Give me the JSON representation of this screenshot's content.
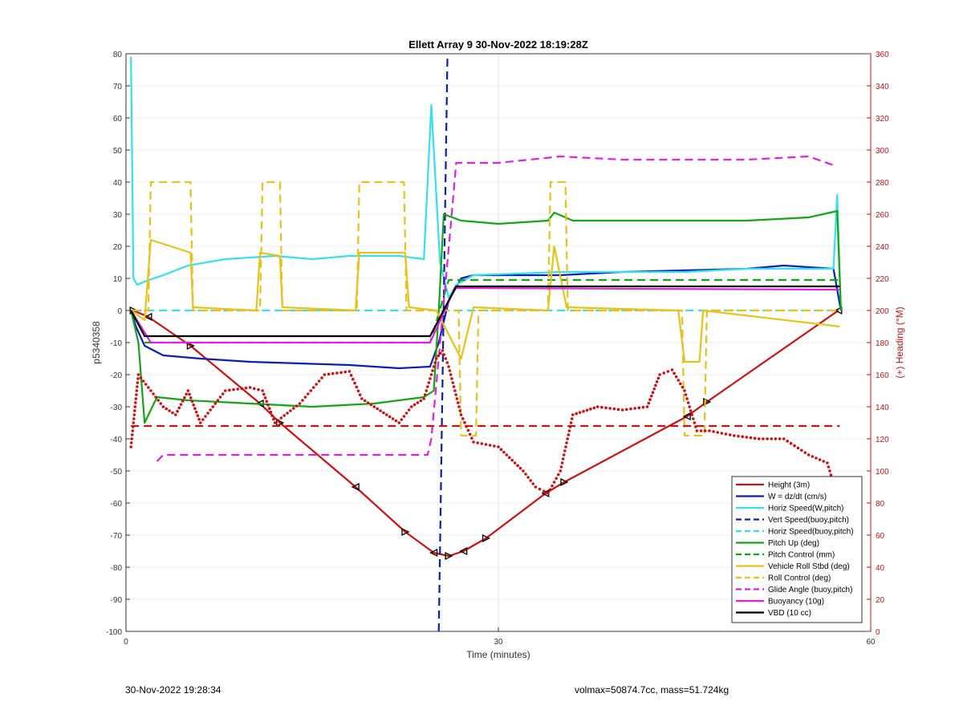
{
  "chart_data": {
    "type": "line",
    "title": "Ellett Array 9 30-Nov-2022 18:19:28Z",
    "xlabel": "Time (minutes)",
    "ylabel": "p5340358",
    "y2label": "(+) Heading (°M)",
    "xlim": [
      0,
      60
    ],
    "ylim": [
      -100,
      80
    ],
    "y2lim": [
      0,
      360
    ],
    "xticks": [
      "0",
      "30",
      "60"
    ],
    "yticks": [
      "80",
      "70",
      "60",
      "50",
      "40",
      "30",
      "20",
      "10",
      "0",
      "-10",
      "-20",
      "-30",
      "-40",
      "-50",
      "-60",
      "-70",
      "-80",
      "-90",
      "-100"
    ],
    "y2ticks": [
      "360",
      "340",
      "320",
      "300",
      "280",
      "260",
      "240",
      "220",
      "200",
      "180",
      "160",
      "140",
      "120",
      "100",
      "80",
      "60",
      "40",
      "20",
      "0"
    ],
    "grid": true,
    "legend_placement": "bottom-right",
    "series": [
      {
        "name": "Height (3m)",
        "color": "#cc1111",
        "style": "solid",
        "marker": "triangle",
        "x": [
          0.6,
          1.8,
          5.2,
          10.8,
          12.4,
          18.5,
          22.5,
          24.8,
          26.0,
          27.2,
          29.0,
          33.8,
          35.3,
          45.2,
          46.8,
          57.4
        ],
        "y": [
          0,
          -2,
          -11,
          -29,
          -35,
          -55,
          -69,
          -75.5,
          -76.5,
          -75,
          -71,
          -57,
          -53.5,
          -33,
          -28.5,
          0
        ]
      },
      {
        "name": "W = dz/dt (cm/s)",
        "color": "#0a1fb5",
        "style": "solid",
        "x": [
          0.4,
          0.8,
          1.5,
          3,
          6,
          10,
          14,
          18,
          22,
          24.5,
          25.2,
          26,
          27,
          28,
          35,
          40,
          45,
          50,
          53,
          55,
          57,
          57.6
        ],
        "y": [
          0,
          -5,
          -11,
          -14,
          -15,
          -16,
          -16.5,
          -17,
          -18,
          -17.5,
          -10,
          3,
          10,
          11,
          11,
          12,
          12.5,
          13,
          14,
          13.5,
          13,
          0
        ]
      },
      {
        "name": "Horiz Speed(W,pitch)",
        "color": "#33e0ee",
        "style": "solid",
        "x": [
          0.4,
          0.6,
          0.9,
          1.5,
          3,
          5,
          8,
          12,
          15,
          18,
          22,
          24,
          24.6,
          25.3,
          26,
          26.6,
          28,
          35,
          40,
          45,
          50,
          53,
          57,
          57.3,
          57.6
        ],
        "y": [
          79,
          10,
          8,
          9,
          11,
          14,
          16,
          17,
          16,
          17,
          17,
          16,
          64,
          15,
          4,
          8,
          11,
          12,
          12,
          12,
          13,
          13,
          13,
          36,
          0
        ]
      },
      {
        "name": "Vert Speed(buoy,pitch)",
        "color": "#0a1fb5",
        "style": "dashed",
        "x": [
          25.2,
          25.9
        ],
        "y": [
          -100,
          80
        ]
      },
      {
        "name": "Horiz Speed(buoy,pitch)",
        "color": "#33e0ee",
        "style": "dashed",
        "x": [
          0.6,
          57.5
        ],
        "y": [
          0,
          0
        ]
      },
      {
        "name": "Pitch Up (deg)",
        "color": "#13a513",
        "style": "solid",
        "x": [
          0.4,
          1.0,
          1.5,
          2.5,
          5,
          10,
          15,
          20,
          24,
          24.8,
          25.2,
          25.6,
          27,
          30,
          34,
          34.5,
          36,
          45,
          50,
          55,
          57.3,
          57.6
        ],
        "y": [
          0,
          -10,
          -35,
          -27,
          -28,
          -29,
          -30,
          -29,
          -27,
          -25,
          0,
          30,
          28,
          27,
          28,
          30.5,
          28,
          28,
          28,
          29,
          31,
          0
        ]
      },
      {
        "name": "Pitch Control (mm)",
        "color": "#13a513",
        "style": "dashed",
        "x": [
          1.5,
          24.5,
          26.0,
          57.5
        ],
        "y": [
          -10,
          -10,
          9.5,
          9.5
        ]
      },
      {
        "name": "Vehicle Roll Stbd (deg)",
        "color": "#e6c21a",
        "style": "solid",
        "x": [
          0.4,
          1.5,
          2.0,
          5.2,
          5.4,
          10.5,
          10.8,
          12.4,
          12.6,
          18.5,
          18.8,
          22.5,
          22.8,
          25.0,
          27.0,
          28.0,
          34.0,
          34.5,
          35.5,
          44.5,
          45.0,
          46.2,
          46.5,
          57.5
        ],
        "y": [
          0,
          -3,
          22,
          18,
          1,
          0,
          18,
          17,
          1,
          0,
          18,
          18,
          1,
          0,
          -15,
          1,
          0,
          20,
          1,
          0,
          -16,
          -16,
          0,
          -5
        ]
      },
      {
        "name": "Roll Control (deg)",
        "color": "#e6c21a",
        "style": "dashed",
        "x": [
          0.4,
          1.8,
          2.0,
          5.2,
          5.4,
          10.8,
          11.0,
          12.4,
          12.6,
          18.6,
          18.8,
          22.4,
          22.6,
          26.8,
          27.0,
          28.2,
          28.4,
          34.0,
          34.2,
          35.4,
          35.6,
          44.8,
          45.0,
          46.6,
          46.8,
          57.5
        ],
        "y": [
          0,
          0,
          40,
          40,
          0,
          0,
          40,
          40,
          0,
          0,
          40,
          40,
          0,
          0,
          -39,
          -39,
          0,
          0,
          40,
          40,
          0,
          0,
          -39,
          -39,
          0,
          0
        ]
      },
      {
        "name": "Glide Angle (buoy,pitch)",
        "color": "#dd22dd",
        "style": "dashed",
        "x": [
          2.5,
          3,
          10,
          20,
          24.3,
          24.6,
          26.2,
          26.6,
          30,
          35,
          40,
          50,
          55,
          57.2
        ],
        "y": [
          -47,
          -45,
          -45,
          -45,
          -45,
          -40,
          28,
          46,
          46,
          48,
          47,
          47,
          48,
          45
        ]
      },
      {
        "name": "Buoyancy (10g)",
        "color": "#e020e0",
        "style": "solid",
        "x": [
          0.4,
          2,
          24.5,
          26.5,
          57.5
        ],
        "y": [
          0,
          -10,
          -10,
          7,
          6.5
        ]
      },
      {
        "name": "VBD (10 cc)",
        "color": "#000000",
        "style": "solid",
        "x": [
          0.4,
          1.5,
          24.5,
          26.6,
          57.5
        ],
        "y": [
          0,
          -8,
          -8,
          7.5,
          7.5
        ]
      },
      {
        "name": "",
        "color": "#cc1111",
        "style": "dotted",
        "axis": "right",
        "x": [
          0.4,
          1,
          2,
          3,
          4,
          5,
          6,
          8,
          10,
          11,
          12,
          14,
          16,
          18,
          19,
          20,
          21,
          22,
          23,
          24,
          25,
          25.5,
          26,
          26.5,
          27,
          28,
          30,
          32,
          33,
          34,
          35,
          36,
          38,
          40,
          42,
          43,
          44,
          45,
          46,
          47,
          49,
          51,
          53,
          55,
          56.5,
          57.3
        ],
        "y": [
          115,
          160,
          150,
          140,
          135,
          150,
          130,
          150,
          152,
          150,
          130,
          142,
          160,
          162,
          145,
          140,
          135,
          130,
          140,
          145,
          170,
          175,
          165,
          150,
          135,
          118,
          115,
          100,
          90,
          86,
          100,
          135,
          140,
          138,
          140,
          160,
          163,
          150,
          125,
          125,
          122,
          120,
          120,
          110,
          105,
          85
        ]
      },
      {
        "name": "",
        "color": "#cc1111",
        "style": "dashed",
        "axis": "right",
        "x": [
          0.4,
          57.5
        ],
        "y": [
          128,
          128
        ]
      }
    ]
  },
  "footer": {
    "left": "30-Nov-2022 19:28:34",
    "right": "volmax=50874.7cc, mass=51.724kg"
  }
}
